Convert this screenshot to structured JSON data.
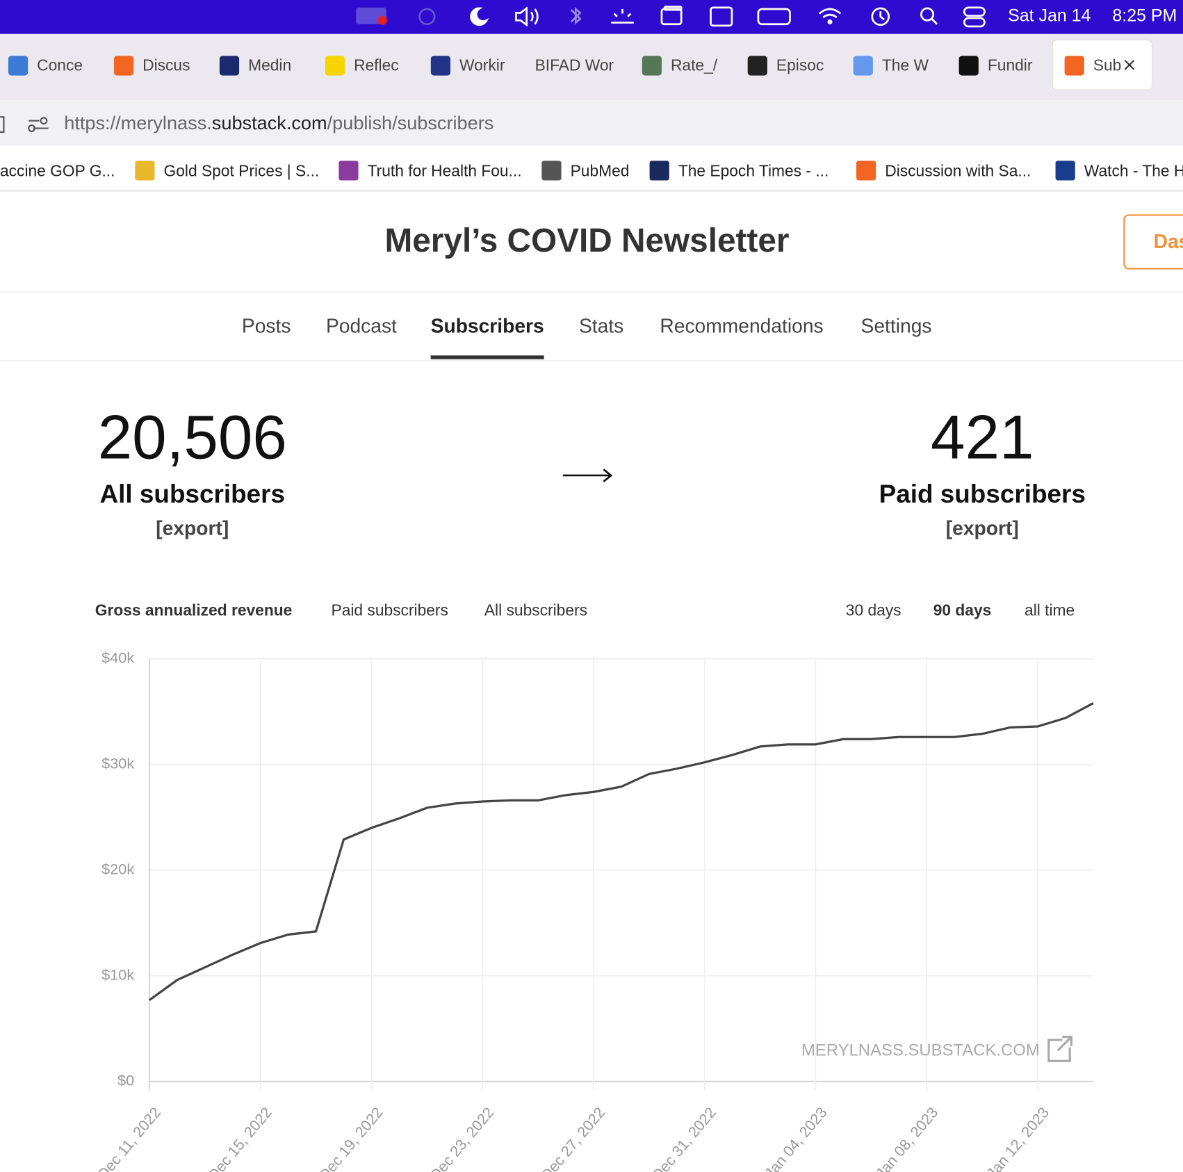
{
  "menu_bar": {
    "date": "Sat Jan 14",
    "time": "8:25 PM"
  },
  "tabs": [
    "Conce",
    "Discus",
    "Medin",
    "Reflec",
    "Workir",
    "BIFAD Wor",
    "Rate_/",
    "Episoc",
    "The W",
    "Fundir",
    "Sub"
  ],
  "active_tab": 10,
  "url": [
    "https://merylnass.",
    "substack.com",
    "/publish/subscribers"
  ],
  "bookmarks": [
    "accine GOP G...",
    "Gold Spot Prices | S...",
    "Truth for Health Fou...",
    "PubMed",
    "The Epoch Times - ...",
    "Discussion with Sa...",
    "Watch - The H"
  ],
  "header": {
    "title": "Meryl’s COVID Newsletter",
    "button": "Das"
  },
  "nav": {
    "items": [
      "Posts",
      "Podcast",
      "Subscribers",
      "Stats",
      "Recommendations",
      "Settings"
    ],
    "active": 2
  },
  "stats": [
    {
      "value": "20,506",
      "label": "All subscribers",
      "link": "[export]"
    },
    {
      "value": "421",
      "label": "Paid subscribers",
      "link": "[export]"
    }
  ],
  "metric_tabs": {
    "items": [
      "Gross annualized revenue",
      "Paid subscribers",
      "All subscribers"
    ],
    "active": 0
  },
  "range_tabs": {
    "items": [
      "30 days",
      "90 days",
      "all time"
    ],
    "active": 1
  },
  "watermark": "MERYLNASS.SUBSTACK.COM",
  "chart_data": {
    "type": "line",
    "color": "#444444",
    "grid": true,
    "x": [
      "2022-12-11",
      "2022-12-12",
      "2022-12-13",
      "2022-12-14",
      "2022-12-15",
      "2022-12-16",
      "2022-12-17",
      "2022-12-18",
      "2022-12-19",
      "2022-12-20",
      "2022-12-21",
      "2022-12-22",
      "2022-12-23",
      "2022-12-24",
      "2022-12-25",
      "2022-12-26",
      "2022-12-27",
      "2022-12-28",
      "2022-12-29",
      "2022-12-30",
      "2022-12-31",
      "2023-01-01",
      "2023-01-02",
      "2023-01-03",
      "2023-01-04",
      "2023-01-05",
      "2023-01-06",
      "2023-01-07",
      "2023-01-08",
      "2023-01-09",
      "2023-01-10",
      "2023-01-11",
      "2023-01-12",
      "2023-01-13",
      "2023-01-14"
    ],
    "values": [
      7700,
      9600,
      10800,
      12000,
      13100,
      13900,
      14200,
      22900,
      24000,
      24900,
      25900,
      26300,
      26500,
      26600,
      26600,
      27100,
      27400,
      27900,
      29100,
      29600,
      30200,
      30900,
      31700,
      31900,
      31900,
      32400,
      32400,
      32600,
      32600,
      32600,
      32900,
      33500,
      33600,
      34400,
      35800
    ],
    "xlim": [
      "2022-12-11",
      "2023-01-14"
    ],
    "xticks": [
      {
        "value": "2022-12-11",
        "label": "Dec 11, 2022"
      },
      {
        "value": "2022-12-15",
        "label": "Dec 15, 2022"
      },
      {
        "value": "2022-12-19",
        "label": "Dec 19, 2022"
      },
      {
        "value": "2022-12-23",
        "label": "Dec 23, 2022"
      },
      {
        "value": "2022-12-27",
        "label": "Dec 27, 2022"
      },
      {
        "value": "2022-12-31",
        "label": "Dec 31, 2022"
      },
      {
        "value": "2023-01-04",
        "label": "Jan 04, 2023"
      },
      {
        "value": "2023-01-08",
        "label": "Jan 08, 2023"
      },
      {
        "value": "2023-01-12",
        "label": "Jan 12, 2023"
      }
    ],
    "ylim": [
      0,
      40000
    ],
    "yticks": [
      {
        "value": 0,
        "label": "$0"
      },
      {
        "value": 10000,
        "label": "$10k"
      },
      {
        "value": 20000,
        "label": "$20k"
      },
      {
        "value": 30000,
        "label": "$30k"
      },
      {
        "value": 40000,
        "label": "$40k"
      }
    ]
  }
}
